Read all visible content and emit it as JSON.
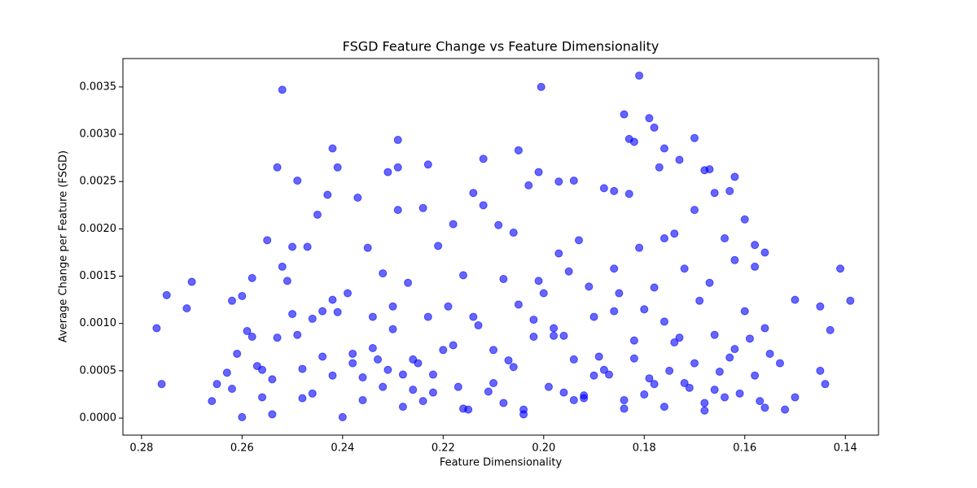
{
  "chart_data": {
    "type": "scatter",
    "title": "FSGD Feature Change vs Feature Dimensionality",
    "xlabel": "Feature Dimensionality",
    "ylabel": "Average Change per Feature (FSGD)",
    "xlim": [
      0.2837,
      0.1334
    ],
    "ylim": [
      -0.00018,
      0.0038
    ],
    "xticks": [
      0.28,
      0.26,
      0.24,
      0.22,
      {
        "value": 0.2,
        "label": "0.20"
      },
      0.18,
      0.16,
      0.14
    ],
    "yticks": [
      {
        "value": 0,
        "label": "0.0000"
      },
      {
        "value": 0.0005,
        "label": "0.0005"
      },
      {
        "value": 0.001,
        "label": "0.0010"
      },
      {
        "value": 0.0015,
        "label": "0.0015"
      },
      {
        "value": 0.002,
        "label": "0.0020"
      },
      {
        "value": 0.0025,
        "label": "0.0025"
      },
      {
        "value": 0.003,
        "label": "0.0030"
      },
      {
        "value": 0.0035,
        "label": "0.0035"
      }
    ],
    "grid": false,
    "series": [
      {
        "color": "#0000ff",
        "x": [
          0.277,
          0.276,
          0.275,
          0.271,
          0.27,
          0.252,
          0.2005,
          0.181,
          0.184,
          0.179,
          0.141,
          0.139,
          0.143,
          0.145,
          0.144,
          0.145,
          0.15,
          0.15,
          0.242,
          0.229,
          0.253,
          0.249,
          0.241,
          0.231,
          0.229,
          0.223,
          0.212,
          0.205,
          0.201,
          0.197,
          0.194,
          0.186,
          0.17,
          0.173,
          0.176,
          0.183,
          0.182,
          0.178,
          0.176,
          0.162,
          0.16,
          0.158,
          0.156,
          0.153,
          0.152,
          0.163,
          0.167,
          0.168,
          0.166,
          0.266,
          0.265,
          0.263,
          0.262,
          0.261,
          0.26,
          0.259,
          0.258,
          0.257,
          0.256,
          0.255,
          0.254,
          0.253,
          0.252,
          0.251,
          0.25,
          0.249,
          0.248,
          0.247,
          0.246,
          0.245,
          0.244,
          0.243,
          0.242,
          0.241,
          0.24,
          0.239,
          0.238,
          0.237,
          0.236,
          0.235,
          0.234,
          0.233,
          0.232,
          0.231,
          0.23,
          0.229,
          0.228,
          0.227,
          0.226,
          0.225,
          0.224,
          0.223,
          0.222,
          0.221,
          0.22,
          0.219,
          0.218,
          0.217,
          0.216,
          0.215,
          0.214,
          0.213,
          0.212,
          0.211,
          0.21,
          0.209,
          0.208,
          0.207,
          0.206,
          0.205,
          0.204,
          0.203,
          0.202,
          0.201,
          0.2,
          0.199,
          0.198,
          0.197,
          0.196,
          0.195,
          0.194,
          0.193,
          0.192,
          0.191,
          0.19,
          0.189,
          0.188,
          0.187,
          0.186,
          0.185,
          0.184,
          0.183,
          0.182,
          0.181,
          0.18,
          0.179,
          0.178,
          0.177,
          0.176,
          0.175,
          0.174,
          0.173,
          0.172,
          0.171,
          0.17,
          0.169,
          0.168,
          0.167,
          0.166,
          0.165,
          0.164,
          0.163,
          0.162,
          0.161,
          0.16,
          0.159,
          0.158,
          0.157,
          0.156,
          0.155,
          0.262,
          0.258,
          0.254,
          0.25,
          0.246,
          0.242,
          0.238,
          0.234,
          0.23,
          0.226,
          0.222,
          0.218,
          0.214,
          0.21,
          0.206,
          0.202,
          0.198,
          0.194,
          0.19,
          0.186,
          0.182,
          0.178,
          0.174,
          0.17,
          0.166,
          0.162,
          0.158,
          0.26,
          0.256,
          0.248,
          0.244,
          0.236,
          0.232,
          0.228,
          0.224,
          0.216,
          0.208,
          0.204,
          0.196,
          0.192,
          0.188,
          0.184,
          0.18,
          0.176,
          0.172,
          0.168,
          0.164,
          0.156
        ],
        "values": [
          0.00095,
          0.00036,
          0.0013,
          0.00116,
          0.00144,
          0.00347,
          0.0035,
          0.00362,
          0.00321,
          0.00317,
          0.00158,
          0.00124,
          0.00093,
          0.00118,
          0.00036,
          0.0005,
          0.00125,
          0.00022,
          0.00285,
          0.00294,
          0.00265,
          0.00251,
          0.00265,
          0.0026,
          0.00265,
          0.00268,
          0.00274,
          0.00283,
          0.0026,
          0.0025,
          0.00251,
          0.0024,
          0.00296,
          0.00273,
          0.00285,
          0.00295,
          0.00292,
          0.00307,
          0.0019,
          0.00255,
          0.0021,
          0.00183,
          0.00175,
          0.00058,
          9e-05,
          0.0024,
          0.00263,
          0.00262,
          0.00238,
          0.00018,
          0.00036,
          0.00048,
          0.00124,
          0.00068,
          1e-05,
          0.00092,
          0.00148,
          0.00055,
          0.00022,
          0.00188,
          4e-05,
          0.00085,
          0.0016,
          0.00145,
          0.00181,
          0.00088,
          0.00052,
          0.00181,
          0.00105,
          0.00215,
          0.00065,
          0.00236,
          0.00045,
          0.00112,
          1e-05,
          0.00132,
          0.00068,
          0.00233,
          0.00043,
          0.0018,
          0.00107,
          0.00062,
          0.00153,
          0.00051,
          0.00094,
          0.0022,
          0.00012,
          0.00143,
          0.0003,
          0.00058,
          0.00222,
          0.00107,
          0.00046,
          0.00182,
          0.00072,
          0.00118,
          0.00205,
          0.00033,
          0.00151,
          9e-05,
          0.00238,
          0.00098,
          0.00225,
          0.00028,
          0.00072,
          0.00204,
          0.00147,
          0.00061,
          0.00196,
          0.0012,
          4e-05,
          0.00246,
          0.00086,
          0.00145,
          0.00132,
          0.00033,
          0.00095,
          0.00174,
          0.00087,
          0.00155,
          0.00062,
          0.00188,
          0.00021,
          0.00139,
          0.00107,
          0.00065,
          0.00243,
          0.00046,
          0.00158,
          0.00132,
          0.0001,
          0.00237,
          0.00063,
          0.0018,
          0.00115,
          0.00042,
          0.00138,
          0.00265,
          0.00102,
          0.0005,
          0.00195,
          0.00085,
          0.00158,
          0.00032,
          0.0022,
          0.00124,
          8e-05,
          0.00143,
          0.00088,
          0.00049,
          0.0019,
          0.00064,
          0.00167,
          0.00026,
          0.00113,
          0.00084,
          0.0016,
          0.00018,
          0.00095,
          0.00068,
          0.00031,
          0.00086,
          0.00041,
          0.0011,
          0.00026,
          0.00125,
          0.00058,
          0.00074,
          0.00118,
          0.00062,
          0.00027,
          0.00077,
          0.00107,
          0.00037,
          0.00054,
          0.00104,
          0.00087,
          0.00019,
          0.00045,
          0.00113,
          0.00082,
          0.00036,
          0.0008,
          0.00058,
          0.0003,
          0.00073,
          0.00045,
          0.00129,
          0.00051,
          0.00021,
          0.00113,
          0.00019,
          0.00033,
          0.00046,
          0.00018,
          0.0001,
          0.00016,
          9e-05,
          0.00027,
          0.00024,
          0.00051,
          0.00019,
          0.00025,
          0.00012,
          0.00037,
          0.00016,
          0.00022,
          0.00011
        ]
      }
    ]
  }
}
